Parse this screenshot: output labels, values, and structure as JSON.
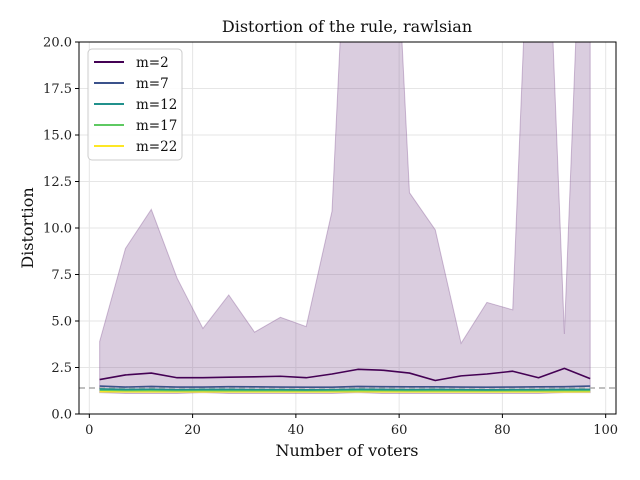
{
  "chart_data": {
    "type": "line",
    "title": "Distortion of the rule, rawlsian",
    "xlabel": "Number of voters",
    "ylabel": "Distortion",
    "xlim": [
      -2,
      102
    ],
    "ylim": [
      0,
      20
    ],
    "xticks": [
      0,
      20,
      40,
      60,
      80,
      100
    ],
    "yticks": [
      0.0,
      2.5,
      5.0,
      7.5,
      10.0,
      12.5,
      15.0,
      17.5,
      20.0
    ],
    "ytick_labels": [
      "0.0",
      "2.5",
      "5.0",
      "7.5",
      "10.0",
      "12.5",
      "15.0",
      "17.5",
      "20.0"
    ],
    "grid": true,
    "legend_position": "top-left",
    "reference_line": {
      "y": 1.4,
      "style": "dashed",
      "color": "#aaaaaa"
    },
    "x": [
      2,
      7,
      12,
      17,
      22,
      27,
      32,
      37,
      42,
      47,
      52,
      57,
      62,
      67,
      72,
      77,
      82,
      87,
      92,
      97
    ],
    "band": {
      "color": "#7b4a8c",
      "lower": [
        1.15,
        1.1,
        1.1,
        1.1,
        1.15,
        1.1,
        1.1,
        1.1,
        1.1,
        1.1,
        1.15,
        1.1,
        1.1,
        1.1,
        1.1,
        1.1,
        1.1,
        1.1,
        1.15,
        1.15
      ],
      "upper": [
        3.9,
        8.9,
        11.0,
        7.3,
        4.6,
        6.4,
        4.4,
        5.2,
        4.7,
        10.9,
        40.0,
        40.0,
        11.9,
        9.9,
        3.8,
        6.0,
        5.6,
        40.0,
        4.3,
        40.0
      ]
    },
    "series": [
      {
        "name": "m=2",
        "color": "#440154",
        "values": [
          1.85,
          2.1,
          2.2,
          1.95,
          1.95,
          1.98,
          2.0,
          2.03,
          1.95,
          2.15,
          2.4,
          2.35,
          2.2,
          1.8,
          2.05,
          2.15,
          2.3,
          1.95,
          2.45,
          1.9
        ]
      },
      {
        "name": "m=7",
        "color": "#3b528b",
        "values": [
          1.5,
          1.45,
          1.48,
          1.45,
          1.45,
          1.47,
          1.46,
          1.45,
          1.44,
          1.44,
          1.48,
          1.47,
          1.46,
          1.46,
          1.45,
          1.44,
          1.45,
          1.46,
          1.47,
          1.5
        ]
      },
      {
        "name": "m=12",
        "color": "#21918c",
        "values": [
          1.35,
          1.32,
          1.33,
          1.31,
          1.32,
          1.32,
          1.31,
          1.31,
          1.3,
          1.31,
          1.33,
          1.32,
          1.31,
          1.32,
          1.31,
          1.3,
          1.31,
          1.31,
          1.32,
          1.32
        ]
      },
      {
        "name": "m=17",
        "color": "#5ec962",
        "values": [
          1.28,
          1.26,
          1.26,
          1.25,
          1.26,
          1.25,
          1.25,
          1.25,
          1.25,
          1.25,
          1.26,
          1.26,
          1.25,
          1.25,
          1.25,
          1.25,
          1.25,
          1.25,
          1.26,
          1.26
        ]
      },
      {
        "name": "m=22",
        "color": "#fde725",
        "values": [
          1.2,
          1.19,
          1.19,
          1.19,
          1.19,
          1.19,
          1.19,
          1.19,
          1.19,
          1.19,
          1.2,
          1.19,
          1.19,
          1.19,
          1.19,
          1.19,
          1.19,
          1.19,
          1.19,
          1.2
        ]
      }
    ]
  }
}
